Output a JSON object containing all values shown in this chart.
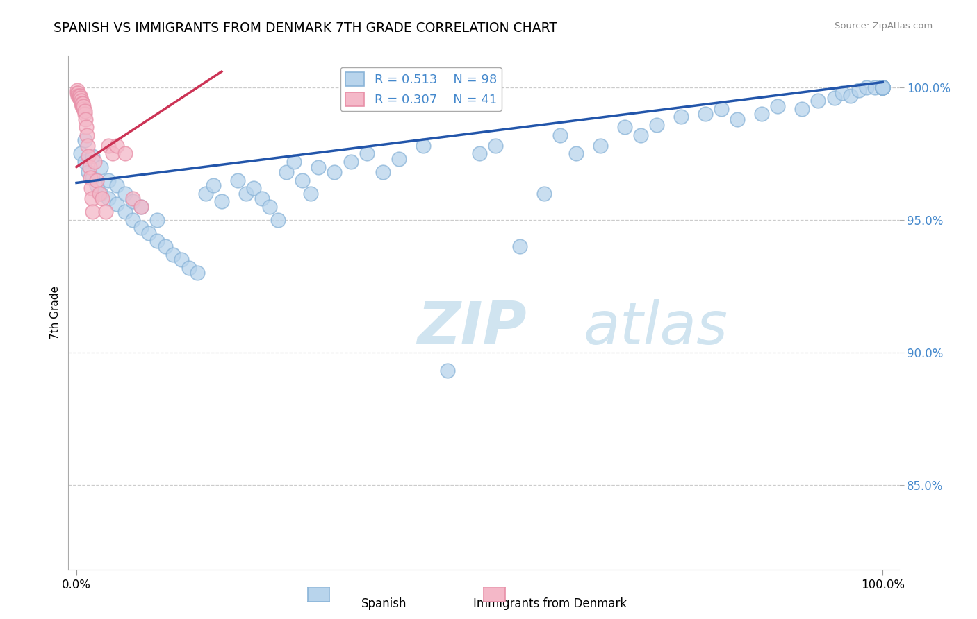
{
  "title": "SPANISH VS IMMIGRANTS FROM DENMARK 7TH GRADE CORRELATION CHART",
  "source": "Source: ZipAtlas.com",
  "ylabel": "7th Grade",
  "legend_blue_r": "R = 0.513",
  "legend_blue_n": "N = 98",
  "legend_pink_r": "R = 0.307",
  "legend_pink_n": "N = 41",
  "blue_fill": "#b8d4ec",
  "blue_edge": "#8ab4d8",
  "pink_fill": "#f4b8c8",
  "pink_edge": "#e890a8",
  "blue_line_color": "#2255aa",
  "pink_line_color": "#cc3355",
  "grid_color": "#cccccc",
  "ytick_color": "#4488cc",
  "watermark_color": "#d0e4f0",
  "xlim": [
    -0.01,
    1.02
  ],
  "ylim": [
    0.818,
    1.012
  ],
  "yticks": [
    0.85,
    0.9,
    0.95,
    1.0
  ],
  "ytick_labels": [
    "85.0%",
    "90.0%",
    "95.0%",
    "100.0%"
  ],
  "blue_line_x0": 0.0,
  "blue_line_x1": 1.0,
  "blue_line_y0": 0.964,
  "blue_line_y1": 1.002,
  "pink_line_x0": 0.0,
  "pink_line_x1": 0.18,
  "pink_line_y0": 0.97,
  "pink_line_y1": 1.006,
  "blue_x": [
    0.005,
    0.01,
    0.01,
    0.015,
    0.02,
    0.02,
    0.025,
    0.03,
    0.03,
    0.04,
    0.04,
    0.05,
    0.05,
    0.06,
    0.06,
    0.07,
    0.07,
    0.08,
    0.08,
    0.09,
    0.1,
    0.1,
    0.11,
    0.12,
    0.13,
    0.14,
    0.15,
    0.16,
    0.17,
    0.18,
    0.2,
    0.21,
    0.22,
    0.23,
    0.24,
    0.25,
    0.26,
    0.27,
    0.28,
    0.29,
    0.3,
    0.32,
    0.34,
    0.36,
    0.38,
    0.4,
    0.43,
    0.46,
    0.5,
    0.52,
    0.55,
    0.58,
    0.6,
    0.62,
    0.65,
    0.68,
    0.7,
    0.72,
    0.75,
    0.78,
    0.8,
    0.82,
    0.85,
    0.87,
    0.9,
    0.92,
    0.94,
    0.95,
    0.96,
    0.97,
    0.98,
    0.99,
    1.0,
    1.0,
    1.0,
    1.0,
    1.0,
    1.0,
    1.0,
    1.0,
    1.0,
    1.0,
    1.0,
    1.0,
    1.0,
    1.0,
    1.0,
    1.0,
    1.0,
    1.0,
    1.0,
    1.0,
    1.0,
    1.0,
    1.0,
    1.0,
    1.0,
    1.0
  ],
  "blue_y": [
    0.975,
    0.972,
    0.98,
    0.968,
    0.966,
    0.974,
    0.963,
    0.96,
    0.97,
    0.958,
    0.965,
    0.956,
    0.963,
    0.953,
    0.96,
    0.95,
    0.957,
    0.947,
    0.955,
    0.945,
    0.942,
    0.95,
    0.94,
    0.937,
    0.935,
    0.932,
    0.93,
    0.96,
    0.963,
    0.957,
    0.965,
    0.96,
    0.962,
    0.958,
    0.955,
    0.95,
    0.968,
    0.972,
    0.965,
    0.96,
    0.97,
    0.968,
    0.972,
    0.975,
    0.968,
    0.973,
    0.978,
    0.893,
    0.975,
    0.978,
    0.94,
    0.96,
    0.982,
    0.975,
    0.978,
    0.985,
    0.982,
    0.986,
    0.989,
    0.99,
    0.992,
    0.988,
    0.99,
    0.993,
    0.992,
    0.995,
    0.996,
    0.998,
    0.997,
    0.999,
    1.0,
    1.0,
    1.0,
    1.0,
    1.0,
    1.0,
    1.0,
    1.0,
    1.0,
    1.0,
    1.0,
    1.0,
    1.0,
    1.0,
    1.0,
    1.0,
    1.0,
    1.0,
    1.0,
    1.0,
    1.0,
    1.0,
    1.0,
    1.0,
    1.0,
    1.0,
    1.0,
    1.0
  ],
  "pink_x": [
    0.001,
    0.001,
    0.002,
    0.002,
    0.003,
    0.003,
    0.004,
    0.004,
    0.005,
    0.005,
    0.006,
    0.006,
    0.007,
    0.007,
    0.008,
    0.008,
    0.009,
    0.009,
    0.01,
    0.01,
    0.011,
    0.012,
    0.013,
    0.014,
    0.015,
    0.016,
    0.017,
    0.018,
    0.019,
    0.02,
    0.022,
    0.025,
    0.028,
    0.032,
    0.036,
    0.04,
    0.045,
    0.05,
    0.06,
    0.07,
    0.08
  ],
  "pink_y": [
    0.999,
    0.998,
    0.998,
    0.997,
    0.997,
    0.996,
    0.996,
    0.997,
    0.995,
    0.996,
    0.994,
    0.995,
    0.993,
    0.994,
    0.993,
    0.994,
    0.992,
    0.993,
    0.99,
    0.991,
    0.988,
    0.985,
    0.982,
    0.978,
    0.974,
    0.97,
    0.966,
    0.962,
    0.958,
    0.953,
    0.972,
    0.965,
    0.96,
    0.958,
    0.953,
    0.978,
    0.975,
    0.978,
    0.975,
    0.958,
    0.955
  ]
}
